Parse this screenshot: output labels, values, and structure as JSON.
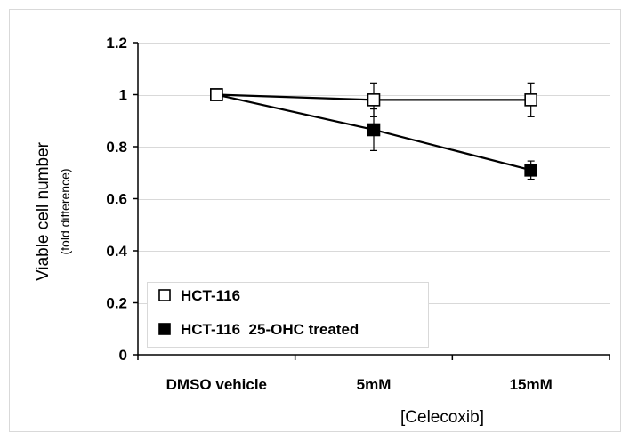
{
  "chart_data": {
    "type": "line",
    "ylabel": "Viable cell number",
    "ylabel_sub": "(fold difference)",
    "xlabel": "[Celecoxib]",
    "categories": [
      "DMSO vehicle",
      "5mM",
      "15mM"
    ],
    "ylim": [
      0,
      1.2
    ],
    "yticks": [
      "0",
      "0.2",
      "0.4",
      "0.6",
      "0.8",
      "1",
      "1.2"
    ],
    "ytick_values": [
      0,
      0.2,
      0.4,
      0.6,
      0.8,
      1,
      1.2
    ],
    "grid": true,
    "legend_position": "bottom-left",
    "series": [
      {
        "name": "HCT-116",
        "marker": "open-square",
        "values": [
          1.0,
          0.98,
          0.98
        ],
        "errors": [
          0.0,
          0.065,
          0.065
        ]
      },
      {
        "name": "HCT-116  25-OHC treated",
        "marker": "filled-square",
        "values": [
          1.0,
          0.865,
          0.71
        ],
        "errors": [
          0.0,
          0.08,
          0.035
        ]
      }
    ],
    "colors": {
      "line": "#000000",
      "grid": "#d9d9d9",
      "frame": "#d9d9d9"
    }
  }
}
